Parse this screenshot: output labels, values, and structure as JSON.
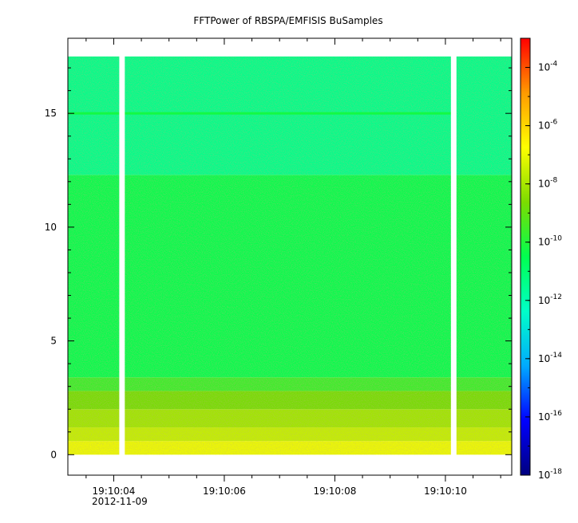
{
  "chart_data": {
    "type": "heatmap",
    "title": "FFTPower of RBSPA/EMFISIS  BuSamples",
    "xlabel": "",
    "ylabel": "",
    "x_axis": {
      "ticks": [
        {
          "label": "19:10:04",
          "seconds": 4
        },
        {
          "label": "19:10:06",
          "seconds": 6
        },
        {
          "label": "19:10:08",
          "seconds": 8
        },
        {
          "label": "19:10:10",
          "seconds": 10
        }
      ],
      "minor_ticks_seconds": [
        3.5,
        4.5,
        5,
        5.5,
        6.5,
        7,
        7.5,
        8.5,
        9,
        9.5,
        10.5,
        11
      ],
      "date_label": "2012-11-09",
      "xlim_seconds": [
        3.17,
        11.2
      ]
    },
    "y_axis": {
      "ticks": [
        {
          "label": "0",
          "value": 0
        },
        {
          "label": "5",
          "value": 5
        },
        {
          "label": "10",
          "value": 10
        },
        {
          "label": "15",
          "value": 15
        }
      ],
      "minor_tick_values": [
        1,
        2,
        3,
        4,
        6,
        7,
        8,
        9,
        11,
        12,
        13,
        14,
        16,
        17
      ],
      "ylim": [
        -0.9,
        18.3
      ]
    },
    "colorbar": {
      "scale": "log",
      "range": [
        1e-18,
        0.001
      ],
      "ticks": [
        {
          "base": "10",
          "exp": "-4",
          "value": -4
        },
        {
          "base": "10",
          "exp": "-6",
          "value": -6
        },
        {
          "base": "10",
          "exp": "-8",
          "value": -8
        },
        {
          "base": "10",
          "exp": "-10",
          "value": -10
        },
        {
          "base": "10",
          "exp": "-12",
          "value": -12
        },
        {
          "base": "10",
          "exp": "-14",
          "value": -14
        },
        {
          "base": "10",
          "exp": "-16",
          "value": -16
        },
        {
          "base": "10",
          "exp": "-18",
          "value": -18
        }
      ],
      "colormap": [
        "#00007f",
        "#0000ff",
        "#00aaff",
        "#00ffc8",
        "#00ff50",
        "#7cdc00",
        "#ffff00",
        "#ff9a00",
        "#ff0000"
      ]
    },
    "data_extent": {
      "y_min": 0,
      "y_max": 17.5
    },
    "data_gaps_seconds": [
      [
        4.1,
        4.2
      ],
      [
        10.1,
        10.2
      ]
    ],
    "bands": [
      {
        "y_from": 0.0,
        "y_to": 0.6,
        "log10_power": -7.0
      },
      {
        "y_from": 0.6,
        "y_to": 1.2,
        "log10_power": -7.6
      },
      {
        "y_from": 1.2,
        "y_to": 2.0,
        "log10_power": -8.1
      },
      {
        "y_from": 2.0,
        "y_to": 2.8,
        "log10_power": -8.7
      },
      {
        "y_from": 2.8,
        "y_to": 3.4,
        "log10_power": -9.6
      },
      {
        "y_from": 3.4,
        "y_to": 12.3,
        "log10_power": -10.4
      },
      {
        "y_from": 12.3,
        "y_to": 17.5,
        "log10_power": -11.4
      }
    ],
    "line_feature": {
      "y": 15.0,
      "log10_power": -10.2
    }
  }
}
